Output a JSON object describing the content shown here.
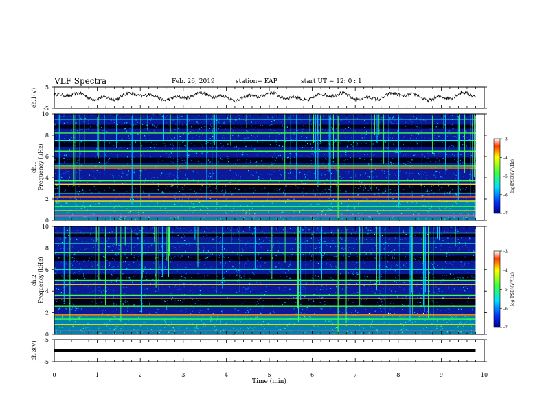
{
  "header": {
    "title": "VLF Spectra",
    "date": "Feb. 26, 2019",
    "station": "station= KAP",
    "start": "start  UT  =   12: 0  : 1"
  },
  "chart_data": [
    {
      "type": "line",
      "ylabel": "ch.1(V)",
      "ylim": [
        -5,
        5
      ],
      "y_ticks": [
        "5",
        "-5"
      ],
      "xlim": [
        0,
        10
      ],
      "note": "noisy waveform, visible amplitude roughly -1.5 to 3 V"
    },
    {
      "type": "heatmap",
      "ylabel": "ch.1\nFrequency (kHz)",
      "ylabel_lines": [
        "ch.1",
        "Frequency (kHz)"
      ],
      "ylim": [
        0,
        10
      ],
      "y_ticks": [
        "0",
        "2",
        "4",
        "6",
        "8",
        "10"
      ],
      "xlim": [
        0,
        10
      ],
      "colorbar": {
        "label": "log(PSD)(V²/Hz)",
        "range": [
          -7,
          -3
        ],
        "ticks": [
          "-3",
          "-4",
          "-5",
          "-6",
          "-7"
        ]
      }
    },
    {
      "type": "heatmap",
      "ylabel": "ch.2\nFrequency (kHz)",
      "ylabel_lines": [
        "ch.2",
        "Frequency (kHz)"
      ],
      "ylim": [
        0,
        10
      ],
      "y_ticks": [
        "0",
        "2",
        "4",
        "6",
        "8",
        "10"
      ],
      "xlim": [
        0,
        10
      ],
      "colorbar": {
        "label": "log(PSD)(V²/Hz)",
        "range": [
          -7,
          -3
        ],
        "ticks": [
          "-3",
          "-4",
          "-5",
          "-6",
          "-7"
        ]
      }
    },
    {
      "type": "line",
      "ylabel": "ch.3(V)",
      "ylim": [
        -5,
        5
      ],
      "y_ticks": [
        "5",
        "-5"
      ],
      "xlim": [
        0,
        10
      ],
      "x_ticks": [
        "0",
        "1",
        "2",
        "3",
        "4",
        "5",
        "6",
        "7",
        "8",
        "9",
        "10"
      ],
      "xlabel": "Time (min)",
      "constant_value": 0
    }
  ]
}
